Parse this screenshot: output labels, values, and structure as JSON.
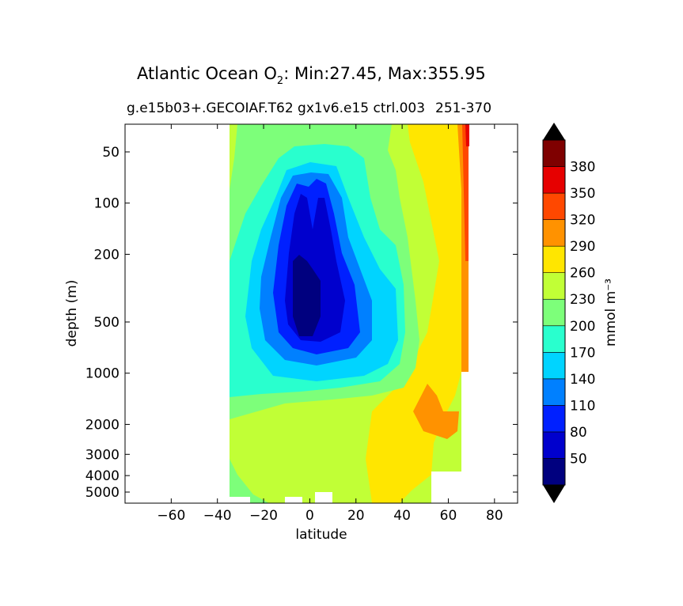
{
  "title_main": "Atlantic Ocean O",
  "title_sub": "2",
  "title_rest": ": Min:27.45, Max:355.95",
  "subtitle": "g.e15b03+.GECOIAF.T62 gx1v6.e15 ctrl.003",
  "subtitle_overlap": "251-370",
  "chart_data": {
    "type": "contourf",
    "xlabel": "latitude",
    "ylabel": "depth (m)",
    "xlim": [
      -80,
      90
    ],
    "x_ticks": [
      -60,
      -40,
      -20,
      0,
      20,
      40,
      60,
      80
    ],
    "x_tick_labels": [
      "−60",
      "−40",
      "−20",
      "0",
      "20",
      "40",
      "60",
      "80"
    ],
    "y_scale": "log, inverted",
    "y_ticks": [
      50,
      100,
      200,
      500,
      1000,
      2000,
      3000,
      4000,
      5000
    ],
    "y_tick_labels": [
      "50",
      "100",
      "200",
      "500",
      "1000",
      "2000",
      "3000",
      "4000",
      "5000"
    ],
    "data_extent_lat": [
      -34,
      68
    ],
    "colorbar": {
      "label": "mmol m⁻³",
      "extend": "both",
      "levels": [
        50,
        80,
        110,
        140,
        170,
        200,
        230,
        260,
        290,
        320,
        350,
        380
      ],
      "level_labels": [
        "50",
        "80",
        "110",
        "140",
        "170",
        "200",
        "230",
        "260",
        "290",
        "320",
        "350",
        "380"
      ],
      "colors": [
        "#00007f",
        "#0000cd",
        "#0020ff",
        "#0080ff",
        "#00d4ff",
        "#29ffce",
        "#7dff7a",
        "#c1ff36",
        "#ffe600",
        "#ff9200",
        "#ff4800",
        "#e60000",
        "#7f0000"
      ],
      "under_color": "#000000",
      "over_color": "#000000"
    }
  }
}
